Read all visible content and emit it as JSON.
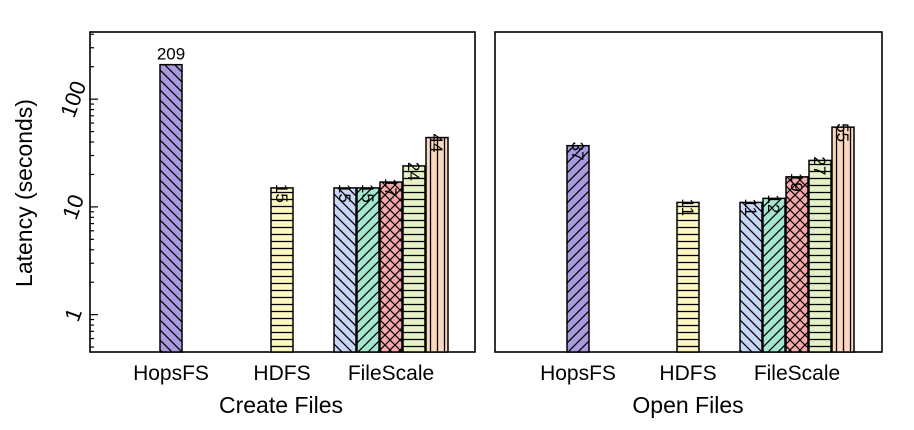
{
  "chart_data": [
    {
      "type": "bar",
      "title": "Create Files",
      "ylabel": "Latency (seconds)",
      "yscale": "log",
      "ylim": [
        0.45,
        420
      ],
      "yticks": [
        1,
        10,
        100
      ],
      "ytick_labels": [
        "1",
        "10",
        "100"
      ],
      "categories": [
        "HopsFS",
        "HDFS",
        "FileScale"
      ],
      "series": [
        {
          "category": "HopsFS",
          "color": "#a99ae0",
          "pattern": "diag-back",
          "value": 209,
          "label": "209"
        },
        {
          "category": "HDFS",
          "color": "#fdf8c0",
          "pattern": "horizontal",
          "value": 15,
          "label": "15"
        },
        {
          "category": "FileScale",
          "color": "#c8d6f7",
          "pattern": "diag-back",
          "value": 15,
          "label": "15"
        },
        {
          "category": "FileScale",
          "color": "#a4e6d0",
          "pattern": "diag-fwd",
          "value": 15,
          "label": "15"
        },
        {
          "category": "FileScale",
          "color": "#f7a8a8",
          "pattern": "cross",
          "value": 17,
          "label": "17"
        },
        {
          "category": "FileScale",
          "color": "#e6f2c6",
          "pattern": "horizontal",
          "value": 24,
          "label": "24"
        },
        {
          "category": "FileScale",
          "color": "#fcd8c0",
          "pattern": "vertical",
          "value": 44,
          "label": "44"
        }
      ]
    },
    {
      "type": "bar",
      "title": "Open Files",
      "yscale": "log",
      "ylim": [
        0.45,
        420
      ],
      "categories": [
        "HopsFS",
        "HDFS",
        "FileScale"
      ],
      "series": [
        {
          "category": "HopsFS",
          "color": "#a99ae0",
          "pattern": "diag-fwd",
          "value": 37,
          "label": "37"
        },
        {
          "category": "HDFS",
          "color": "#fdf8c0",
          "pattern": "horizontal",
          "value": 11,
          "label": "11"
        },
        {
          "category": "FileScale",
          "color": "#c8d6f7",
          "pattern": "diag-back",
          "value": 11,
          "label": "11"
        },
        {
          "category": "FileScale",
          "color": "#a4e6d0",
          "pattern": "diag-fwd",
          "value": 12,
          "label": "12"
        },
        {
          "category": "FileScale",
          "color": "#f7a8a8",
          "pattern": "cross",
          "value": 19,
          "label": "19"
        },
        {
          "category": "FileScale",
          "color": "#e6f2c6",
          "pattern": "horizontal",
          "value": 27,
          "label": "27"
        },
        {
          "category": "FileScale",
          "color": "#fcd8c0",
          "pattern": "vertical",
          "value": 55,
          "label": "55"
        }
      ]
    }
  ]
}
